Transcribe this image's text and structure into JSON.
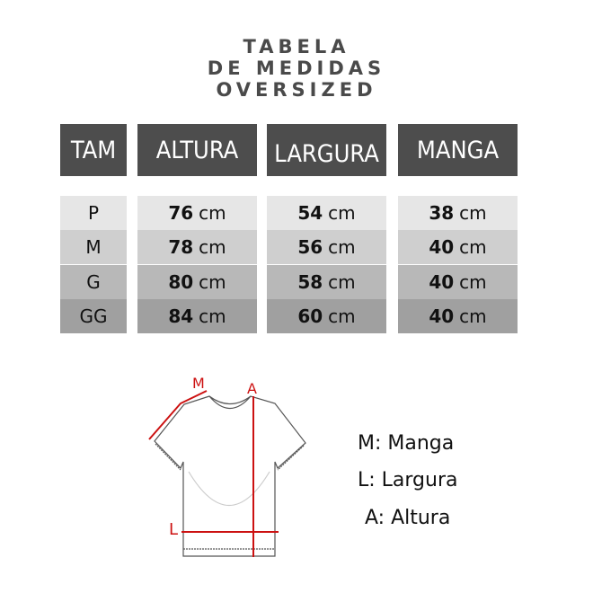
{
  "title": [
    "TABELA",
    "DE MEDIDAS",
    "OVERSIZED"
  ],
  "headers": [
    "TAM",
    "ALTURA",
    "LARGURA",
    "MANGA"
  ],
  "unit": "cm",
  "rows": [
    {
      "size": "P",
      "altura": "76",
      "largura": "54",
      "manga": "38"
    },
    {
      "size": "M",
      "altura": "78",
      "largura": "56",
      "manga": "40"
    },
    {
      "size": "G",
      "altura": "80",
      "largura": "58",
      "manga": "40"
    },
    {
      "size": "GG",
      "altura": "84",
      "largura": "60",
      "manga": "40"
    }
  ],
  "row_colors": [
    "#e6e6e6",
    "#cfcfcf",
    "#b8b8b8",
    "#a0a0a0"
  ],
  "header_color": "#4d4d4d",
  "accent_color": "#cc1111",
  "diagram": {
    "label_m": "M",
    "label_a": "A",
    "label_l": "L"
  },
  "legend": [
    "M: Manga",
    "L: Largura",
    "A: Altura"
  ]
}
